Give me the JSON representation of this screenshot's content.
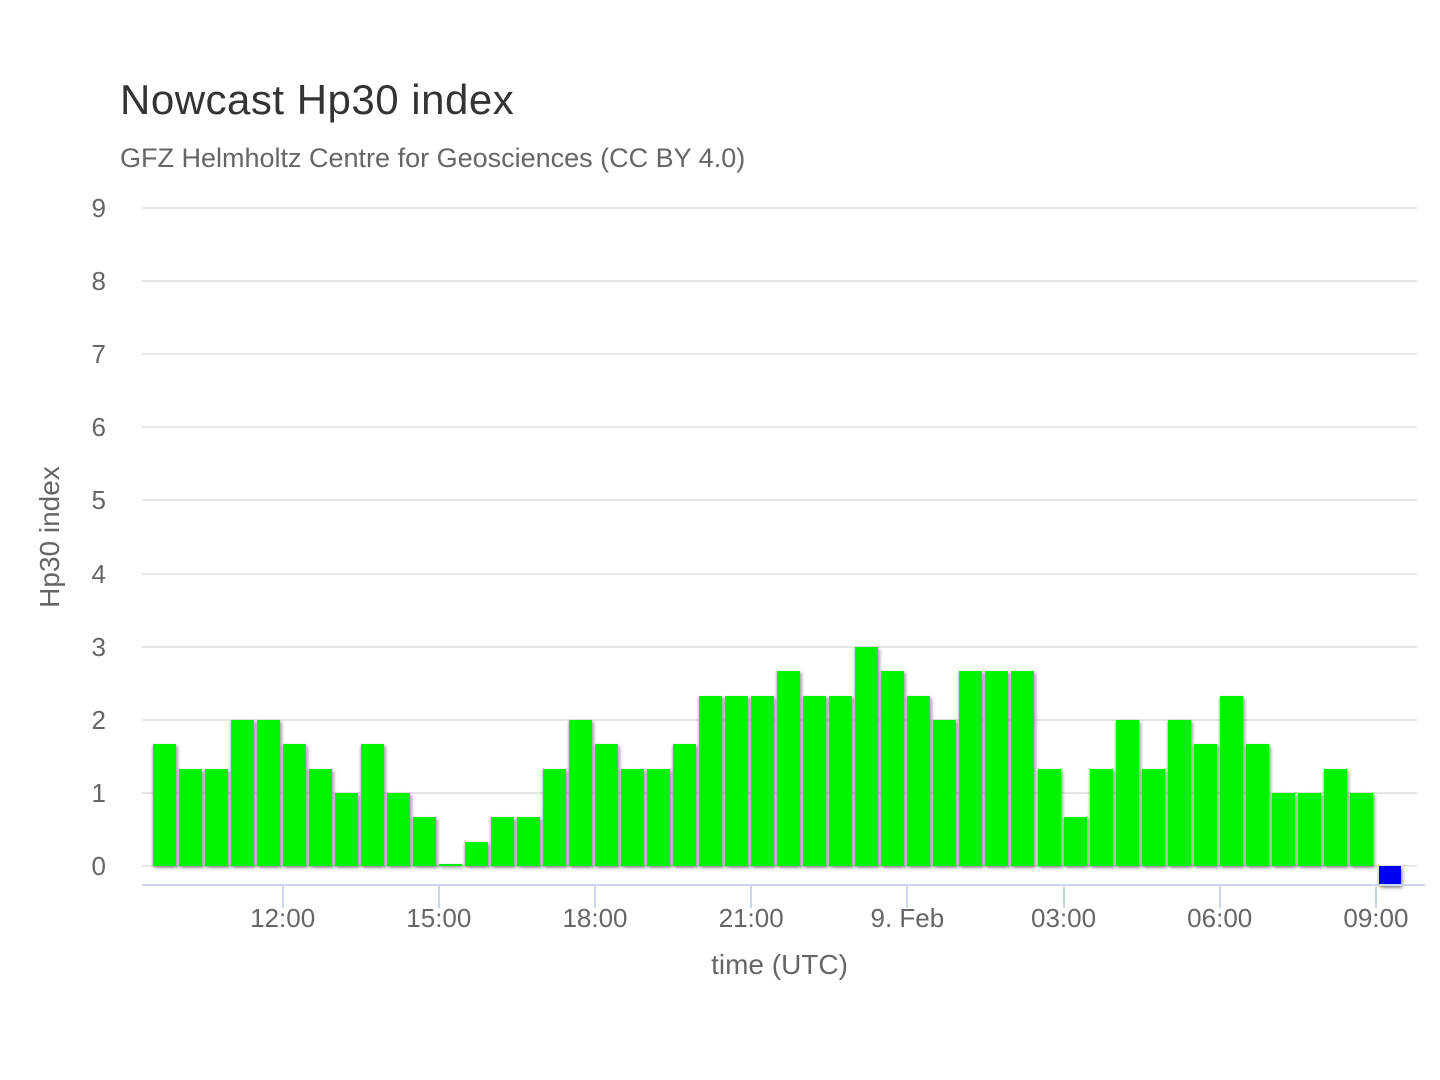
{
  "header": {
    "title": "Nowcast Hp30 index",
    "subtitle": "GFZ Helmholtz Centre for Geosciences (CC BY 4.0)"
  },
  "chart_data": {
    "type": "bar",
    "title": "Nowcast Hp30 index",
    "subtitle": "GFZ Helmholtz Centre for Geosciences (CC BY 4.0)",
    "xlabel": "time (UTC)",
    "ylabel": "Hp30 index",
    "ylim": [
      0,
      9
    ],
    "y_ticks": [
      0,
      1,
      2,
      3,
      4,
      5,
      6,
      7,
      8,
      9
    ],
    "grid": "horizontal-only",
    "legend": "none",
    "x_tick_labels": [
      "12:00",
      "15:00",
      "18:00",
      "21:00",
      "9. Feb",
      "03:00",
      "06:00",
      "09:00"
    ],
    "x_start": "09:30",
    "x_step_minutes": 30,
    "day_boundary_label": "9. Feb",
    "series": [
      {
        "name": "Hp30",
        "values": [
          1.67,
          1.33,
          1.33,
          2.0,
          2.0,
          1.67,
          1.33,
          1.0,
          1.67,
          1.0,
          0.67,
          0.03,
          0.33,
          0.67,
          0.67,
          1.33,
          2.0,
          1.67,
          1.33,
          1.33,
          1.67,
          2.33,
          2.33,
          2.33,
          2.67,
          2.33,
          2.33,
          3.0,
          2.67,
          2.33,
          2.0,
          2.67,
          2.67,
          2.67,
          1.33,
          0.67,
          1.33,
          2.0,
          1.33,
          2.0,
          1.67,
          2.33,
          1.67,
          1.0,
          1.0,
          1.33,
          1.0
        ]
      }
    ],
    "final_bar": {
      "time": "09:00",
      "value": 0,
      "style": "small blue square below zero line"
    }
  },
  "colors": {
    "bar_green": "#00f400",
    "final_bar_blue": "#0000f4",
    "grid": "#e6e6e6",
    "axis_line": "#ccd6eb",
    "label_gray": "#666666",
    "title_gray": "#333333"
  }
}
